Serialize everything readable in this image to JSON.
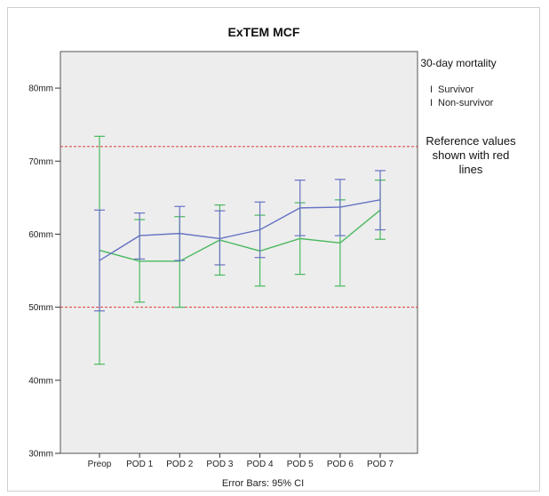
{
  "chart_data": {
    "type": "line",
    "title": "ExTEM MCF",
    "xlabel": "",
    "ylabel": "",
    "categories": [
      "Preop",
      "POD 1",
      "POD 2",
      "POD 3",
      "POD 4",
      "POD 5",
      "POD 6",
      "POD 7"
    ],
    "yticks": [
      "30mm",
      "40mm",
      "50mm",
      "60mm",
      "70mm",
      "80mm"
    ],
    "ytick_values": [
      30,
      40,
      50,
      60,
      70,
      80
    ],
    "ylim": [
      30,
      85
    ],
    "grid": false,
    "legend": {
      "title": "30-day mortality",
      "placement": "right",
      "marker": "I"
    },
    "series": [
      {
        "name": "Survivor",
        "color": "#6673c2",
        "values": [
          56.4,
          59.8,
          60.1,
          59.4,
          60.6,
          63.6,
          63.7,
          64.7
        ],
        "ci_low": [
          49.5,
          56.6,
          56.4,
          55.8,
          56.8,
          59.8,
          59.8,
          60.6
        ],
        "ci_high": [
          63.3,
          62.9,
          63.8,
          63.2,
          64.4,
          67.4,
          67.5,
          68.7
        ]
      },
      {
        "name": "Non-survivor",
        "color": "#49b85f",
        "values": [
          57.8,
          56.3,
          56.3,
          59.2,
          57.7,
          59.4,
          58.8,
          63.3
        ],
        "ci_low": [
          42.2,
          50.7,
          50.0,
          54.4,
          52.9,
          54.5,
          52.9,
          59.3
        ],
        "ci_high": [
          73.4,
          62.0,
          62.4,
          64.0,
          62.6,
          64.3,
          64.7,
          67.4
        ]
      }
    ],
    "reference_lines": [
      {
        "value": 50,
        "color": "#e0393b",
        "style": "dashed"
      },
      {
        "value": 72,
        "color": "#e0393b",
        "style": "dashed"
      }
    ],
    "annotation": "Reference values shown with red lines",
    "annotation_lines": [
      "Reference values",
      "shown with red",
      "lines"
    ],
    "footnote": "Error Bars: 95% CI"
  }
}
